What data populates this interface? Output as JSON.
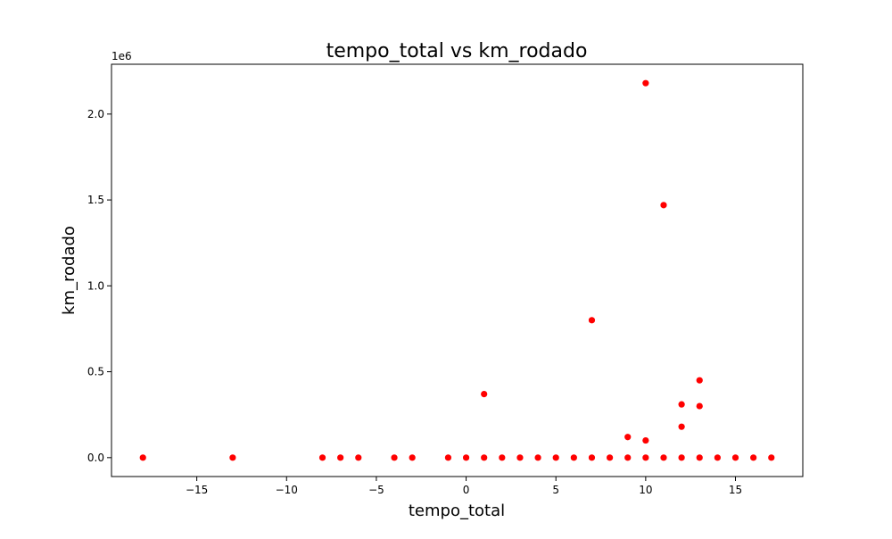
{
  "chart_data": {
    "type": "scatter",
    "title": "tempo_total vs km_rodado",
    "xlabel": "tempo_total",
    "ylabel": "km_rodado",
    "y_offset_label": "1e6",
    "xlim": [
      -19.75,
      18.75
    ],
    "ylim": [
      -0.11,
      2.29
    ],
    "x_ticks": [
      -15,
      -10,
      -5,
      0,
      5,
      10,
      15
    ],
    "x_tick_labels": [
      "−15",
      "−10",
      "−5",
      "0",
      "5",
      "10",
      "15"
    ],
    "y_ticks": [
      0.0,
      0.5,
      1.0,
      1.5,
      2.0
    ],
    "y_tick_labels": [
      "0.0",
      "0.5",
      "1.0",
      "1.5",
      "2.0"
    ],
    "grid": false,
    "marker_color": "#ff0000",
    "series": [
      {
        "x": [
          -18,
          -13,
          -8,
          -7,
          -6,
          -4,
          -3,
          -1,
          0,
          1,
          2,
          3,
          4,
          5,
          6,
          7,
          8,
          9,
          10,
          11,
          12,
          13,
          14,
          15,
          16,
          17,
          1,
          7,
          9,
          10,
          10,
          11,
          12,
          12,
          13,
          13
        ],
        "y": [
          0,
          0,
          0,
          0,
          0,
          0,
          0,
          0,
          0,
          0,
          0,
          0,
          0,
          0,
          0,
          0,
          0,
          0,
          0,
          0,
          0,
          0,
          0,
          0,
          0,
          0,
          0.37,
          0.8,
          0.12,
          0.1,
          2.18,
          1.47,
          0.31,
          0.18,
          0.45,
          0.3
        ]
      }
    ]
  }
}
